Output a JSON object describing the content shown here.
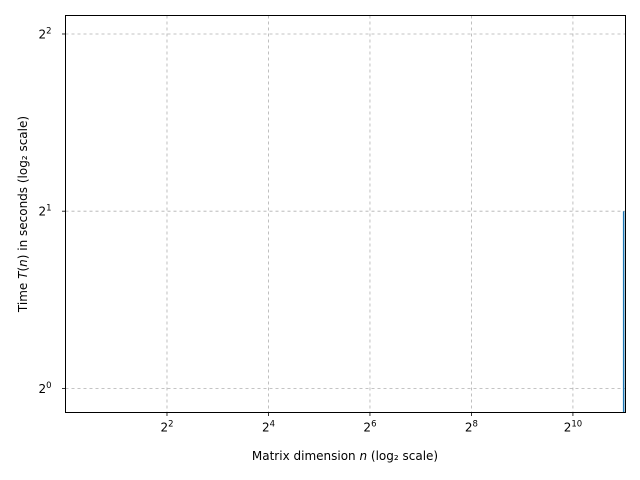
{
  "chart_data": {
    "type": "line",
    "title": "",
    "xlabel": {
      "pre": "Matrix dimension ",
      "var": "n",
      "post": " (log₂ scale)"
    },
    "ylabel": {
      "pre": "Time ",
      "var": "T",
      "mid": "(",
      "var2": "n",
      "post": ") in seconds (log₂ scale)"
    },
    "xscale": "log2",
    "yscale": "log2",
    "xlim": [
      1.0,
      2100
    ],
    "ylim": [
      0.91,
      4.3
    ],
    "grid": true,
    "xticks": [
      {
        "value": 4,
        "base": "2",
        "exp": "2"
      },
      {
        "value": 16,
        "base": "2",
        "exp": "4"
      },
      {
        "value": 64,
        "base": "2",
        "exp": "6"
      },
      {
        "value": 256,
        "base": "2",
        "exp": "8"
      },
      {
        "value": 1024,
        "base": "2",
        "exp": "10"
      }
    ],
    "yticks": [
      {
        "value": 1,
        "base": "2",
        "exp": "0"
      },
      {
        "value": 2,
        "base": "2",
        "exp": "1"
      },
      {
        "value": 4,
        "base": "2",
        "exp": "2"
      }
    ],
    "series": [
      {
        "color": "#1f77b4",
        "x": [
          2048,
          2048
        ],
        "y": [
          0.91,
          2.0
        ]
      }
    ]
  }
}
